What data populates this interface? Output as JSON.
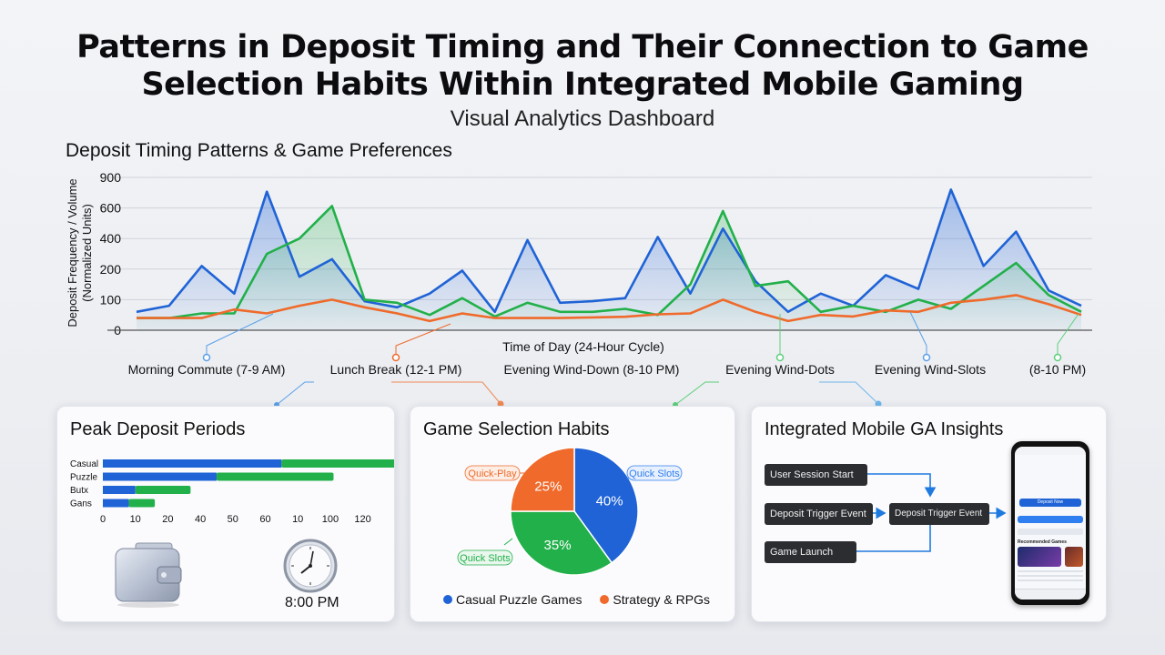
{
  "header": {
    "title_line1": "Patterns in Deposit Timing and Their Connection to Game",
    "title_line2": "Selection Habits Within Integrated Mobile Gaming",
    "subtitle": "Visual Analytics Dashboard"
  },
  "main_chart": {
    "section_title": "Deposit Timing Patterns & Game Preferences",
    "annotations": [
      "Morning Commute (7-9 AM)",
      "Lunch Break (12-1 PM)",
      "Evening Wind-Down (8-10 PM)",
      "Evening Wind-Dots",
      "Evening Wind-Slots",
      "(8-10 PM)"
    ]
  },
  "chart_data": [
    {
      "type": "line",
      "title": "Deposit Timing Patterns & Game Preferences",
      "xlabel": "Time of Day (24-Hour Cycle)",
      "ylabel": "Deposit Frequency / Volume (Normalized Units)",
      "y_tick_labels": [
        "0",
        "100",
        "200",
        "400",
        "600",
        "900"
      ],
      "grid": true,
      "x": [
        1,
        2,
        3,
        4,
        5,
        6,
        7,
        8,
        9,
        10,
        11,
        12,
        13,
        14,
        15,
        16,
        17,
        18,
        19,
        20,
        21,
        22,
        23,
        24,
        25,
        26,
        27,
        28,
        29,
        30
      ],
      "series": [
        {
          "color": "#1f63d6",
          "values": [
            60,
            80,
            220,
            120,
            760,
            175,
            265,
            95,
            75,
            120,
            195,
            60,
            390,
            90,
            95,
            105,
            410,
            120,
            465,
            160,
            60,
            120,
            80,
            180,
            135,
            780,
            220,
            445,
            130,
            80
          ]
        },
        {
          "color": "#22b04a",
          "values": [
            40,
            40,
            55,
            55,
            300,
            400,
            620,
            100,
            90,
            50,
            105,
            45,
            90,
            60,
            60,
            70,
            50,
            150,
            580,
            145,
            160,
            60,
            80,
            60,
            100,
            70,
            145,
            240,
            115,
            60
          ]
        },
        {
          "color": "#ef6a2b",
          "values": [
            40,
            40,
            40,
            68,
            55,
            80,
            100,
            75,
            55,
            30,
            55,
            40,
            40,
            40,
            42,
            44,
            52,
            55,
            100,
            60,
            30,
            50,
            45,
            65,
            60,
            90,
            100,
            115,
            85,
            50
          ]
        }
      ]
    },
    {
      "type": "bar",
      "title": "Peak Deposit Periods",
      "categories": [
        "Casual",
        "Puzzle",
        "Butx",
        "Gans"
      ],
      "x_tick_labels": [
        "0",
        "10",
        "20",
        "40",
        "50",
        "60",
        "10",
        "100",
        "120"
      ],
      "series": [
        {
          "color": "#1f63d6",
          "values": [
            55,
            35,
            10,
            8
          ]
        },
        {
          "color": "#22b04a",
          "values": [
            50,
            36,
            17,
            8
          ]
        }
      ]
    },
    {
      "type": "pie",
      "title": "Game Selection Habits",
      "slices": [
        {
          "label": "40%",
          "value": 40,
          "color": "#1f63d6"
        },
        {
          "label": "35%",
          "value": 35,
          "color": "#22b04a"
        },
        {
          "label": "25%",
          "value": 25,
          "color": "#ef6a2b"
        }
      ],
      "callouts": [
        "Quick-Play",
        "Quick Slots",
        "Quick Slots"
      ],
      "legend": [
        {
          "label": "Casual Puzzle Games",
          "color": "#1f63d6"
        },
        {
          "label": "Strategy & RPGs",
          "color": "#ef6a2b"
        }
      ]
    }
  ],
  "peak_card": {
    "title": "Peak Deposit Periods",
    "time": "8:00 PM",
    "icons": [
      "wallet-icon",
      "clock-icon"
    ]
  },
  "habits_card": {
    "title": "Game Selection Habits"
  },
  "insights_card": {
    "title": "Integrated Mobile GA Insights",
    "flow": {
      "user_session_start": "User Session Start",
      "deposit_trigger_left": "Deposit Trigger Event",
      "deposit_trigger_right": "Deposit Trigger Event",
      "game_launch": "Game Launch"
    },
    "phone": {
      "button_label": "Deposit Now",
      "section_title": "Recommended Games"
    }
  }
}
